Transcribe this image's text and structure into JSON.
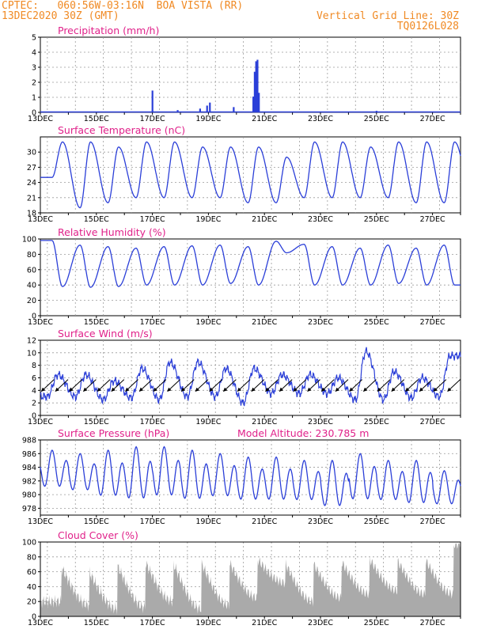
{
  "header": {
    "line1_left": "CPTEC:   060:56W-03:16N  BOA VISTA (RR)",
    "line2_left": "13DEC2020 30Z (GMT)",
    "line1_right": "Vertical Grid Line: 30Z",
    "line2_right": "TQ0126L028"
  },
  "colors": {
    "header": "#f08a24",
    "panel_title": "#e0218a",
    "series": "#2b3fd8",
    "cloud": "#aaaaaa",
    "grid": "#9a9a9a",
    "wind_arrow": "#000000"
  },
  "chart_data": [
    {
      "id": "precip",
      "type": "bar",
      "title": "Precipitation (mm/h)",
      "x_tick_labels": [
        "13DEC",
        "15DEC",
        "17DEC",
        "19DEC",
        "21DEC",
        "23DEC",
        "25DEC",
        "27DEC"
      ],
      "x_range_days": [
        13,
        28
      ],
      "ylim": [
        0,
        5
      ],
      "y_ticks": [
        0,
        1,
        2,
        3,
        4,
        5
      ],
      "bars": [
        {
          "day": 17.0,
          "value": 1.45
        },
        {
          "day": 17.9,
          "value": 0.15
        },
        {
          "day": 18.7,
          "value": 0.25
        },
        {
          "day": 18.95,
          "value": 0.45
        },
        {
          "day": 19.05,
          "value": 0.65
        },
        {
          "day": 19.9,
          "value": 0.35
        },
        {
          "day": 20.6,
          "value": 1.05
        },
        {
          "day": 20.65,
          "value": 2.7
        },
        {
          "day": 20.7,
          "value": 3.4
        },
        {
          "day": 20.75,
          "value": 3.5
        },
        {
          "day": 20.8,
          "value": 1.3
        },
        {
          "day": 25.0,
          "value": 0.1
        }
      ]
    },
    {
      "id": "temperature",
      "type": "line",
      "title": "Surface Temperature (nC)",
      "x_tick_labels": [
        "13DEC",
        "15DEC",
        "17DEC",
        "19DEC",
        "21DEC",
        "23DEC",
        "25DEC",
        "27DEC"
      ],
      "x_range_days": [
        13,
        28
      ],
      "ylim": [
        18,
        33
      ],
      "y_ticks": [
        18,
        21,
        24,
        27,
        30
      ],
      "y_tick_labels": [
        "18",
        "21",
        "24",
        "27",
        "30"
      ],
      "min": [
        25,
        19,
        20,
        21,
        21,
        21,
        21,
        20,
        20,
        21,
        21,
        21,
        21,
        20,
        20,
        21
      ],
      "max": [
        32,
        32,
        31,
        32,
        32,
        31,
        31,
        31,
        29,
        32,
        32,
        31,
        32,
        32,
        32
      ]
    },
    {
      "id": "humidity",
      "type": "line",
      "title": "Relative Humidity (%)",
      "x_tick_labels": [
        "13DEC",
        "15DEC",
        "17DEC",
        "19DEC",
        "21DEC",
        "23DEC",
        "25DEC",
        "27DEC"
      ],
      "x_range_days": [
        13,
        28
      ],
      "ylim": [
        0,
        100
      ],
      "y_ticks": [
        0,
        20,
        40,
        60,
        80,
        100
      ],
      "min": [
        38,
        37,
        38,
        40,
        40,
        40,
        42,
        40,
        82,
        40,
        40,
        40,
        42,
        40,
        40
      ],
      "max": [
        98,
        92,
        90,
        88,
        90,
        91,
        92,
        90,
        97,
        93,
        90,
        88,
        92,
        88,
        92
      ]
    },
    {
      "id": "wind",
      "type": "line",
      "title": "Surface Wind (m/s)",
      "x_tick_labels": [
        "13DEC",
        "15DEC",
        "17DEC",
        "19DEC",
        "21DEC",
        "23DEC",
        "25DEC",
        "27DEC"
      ],
      "x_range_days": [
        13,
        28
      ],
      "ylim": [
        0,
        12
      ],
      "y_ticks": [
        0,
        2,
        4,
        6,
        8,
        10,
        12
      ],
      "peaks": [
        6.5,
        6.5,
        5.5,
        7.5,
        8.5,
        8.5,
        7.5,
        7.5,
        6.5,
        6.5,
        6.0,
        10.2,
        7.0,
        6.0,
        9.5
      ],
      "troughs": [
        3.0,
        3.0,
        2.5,
        2.8,
        2.5,
        3.0,
        3.0,
        2.0,
        3.5,
        3.5,
        3.5,
        2.5,
        2.5,
        2.8,
        3.0
      ]
    },
    {
      "id": "pressure",
      "type": "line",
      "title": "Surface Pressure (hPa)",
      "annotation": "Model Altitude: 230.785 m",
      "x_tick_labels": [
        "13DEC",
        "15DEC",
        "17DEC",
        "19DEC",
        "21DEC",
        "23DEC",
        "25DEC",
        "27DEC"
      ],
      "x_range_days": [
        13,
        28
      ],
      "ylim": [
        977,
        988
      ],
      "y_ticks": [
        978,
        980,
        982,
        984,
        986,
        988
      ],
      "peaks": [
        986.5,
        986.0,
        986.5,
        987.0,
        987.0,
        986.5,
        986.0,
        985.5,
        985.5,
        985.0,
        985.0,
        986.0,
        985.0,
        985.0,
        983.5
      ],
      "troughs": [
        980.5,
        980.0,
        979.0,
        978.5,
        979.0,
        978.5,
        979.0,
        978.5,
        978.5,
        978.5,
        977.5,
        978.5,
        978.5,
        978.0,
        978.0
      ]
    },
    {
      "id": "cloud",
      "type": "area",
      "title": "Cloud Cover (%)",
      "x_tick_labels": [
        "13DEC",
        "15DEC",
        "17DEC",
        "19DEC",
        "21DEC",
        "23DEC",
        "25DEC",
        "27DEC"
      ],
      "x_range_days": [
        13,
        28
      ],
      "ylim": [
        0,
        100
      ],
      "y_ticks": [
        0,
        20,
        40,
        60,
        80,
        100
      ],
      "daily_max": [
        88,
        80,
        92,
        95,
        97,
        95,
        92,
        90,
        92,
        90,
        92,
        95,
        93,
        95,
        97
      ],
      "daily_min": [
        20,
        15,
        10,
        12,
        20,
        10,
        15,
        25,
        45,
        20,
        25,
        30,
        35,
        30,
        30
      ]
    }
  ]
}
